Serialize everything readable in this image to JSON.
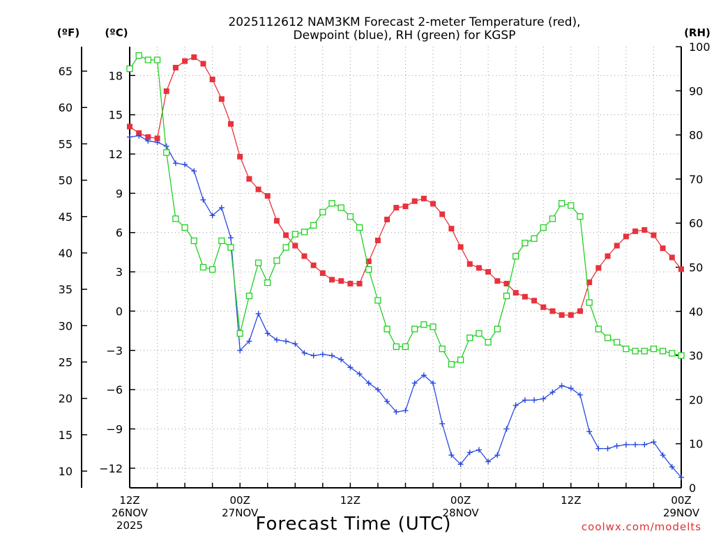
{
  "chart_data": {
    "type": "line",
    "title_line1": "2025112612 NAM3KM Forecast 2-meter Temperature (red),",
    "title_line2": "Dewpoint (blue), RH (green) for KGSP",
    "xlabel": "Forecast Time (UTC)",
    "credit": "coolwx.com/modelts",
    "units": {
      "f": "(ºF)",
      "c": "(ºC)",
      "rh": "(RH)"
    },
    "x_range_hours": [
      0,
      60
    ],
    "x_ticks": [
      {
        "hour": 0,
        "lines": [
          "12Z",
          "26NOV",
          "2025"
        ]
      },
      {
        "hour": 12,
        "lines": [
          "00Z",
          "27NOV"
        ]
      },
      {
        "hour": 24,
        "lines": [
          "12Z"
        ]
      },
      {
        "hour": 36,
        "lines": [
          "00Z",
          "28NOV"
        ]
      },
      {
        "hour": 48,
        "lines": [
          "12Z"
        ]
      },
      {
        "hour": 60,
        "lines": [
          "00Z",
          "29NOV"
        ]
      }
    ],
    "temp_c_range": [
      -13.5,
      20.2
    ],
    "celsius_ticks": [
      18,
      15,
      12,
      9,
      6,
      3,
      0,
      -3,
      -6,
      -9,
      -12
    ],
    "celsius_tick_labels": [
      "18",
      "15",
      "12",
      "9",
      "6",
      "3",
      "0",
      "−3",
      "−6",
      "−9",
      "−12"
    ],
    "fahrenheit_ticks": [
      "65",
      "60",
      "55",
      "50",
      "45",
      "40",
      "35",
      "30",
      "25",
      "20",
      "15",
      "10"
    ],
    "rh_range": [
      0,
      100
    ],
    "rh_ticks": [
      "100",
      "90",
      "80",
      "70",
      "60",
      "50",
      "40",
      "30",
      "20",
      "10",
      "0"
    ],
    "series": [
      {
        "name": "2-meter Temperature",
        "axis": "celsius",
        "color": "#e8323c",
        "marker": "filled-square",
        "x": [
          0,
          1,
          2,
          3,
          4,
          5,
          6,
          7,
          8,
          9,
          10,
          11,
          12,
          13,
          14,
          15,
          16,
          17,
          18,
          19,
          20,
          21,
          22,
          23,
          24,
          25,
          26,
          27,
          28,
          29,
          30,
          31,
          32,
          33,
          34,
          35,
          36,
          37,
          38,
          39,
          40,
          41,
          42,
          43,
          44,
          45,
          46,
          47,
          48,
          49,
          50,
          51,
          52,
          53,
          54,
          55,
          56,
          57,
          58,
          59,
          60
        ],
        "values": [
          14.1,
          13.6,
          13.3,
          13.2,
          16.8,
          18.6,
          19.1,
          19.4,
          18.9,
          17.7,
          16.2,
          14.3,
          11.8,
          10.1,
          9.3,
          8.8,
          6.9,
          5.8,
          5.0,
          4.2,
          3.5,
          2.9,
          2.4,
          2.3,
          2.1,
          2.1,
          3.8,
          5.4,
          7.0,
          7.9,
          8.0,
          8.4,
          8.6,
          8.2,
          7.4,
          6.3,
          4.9,
          3.6,
          3.3,
          3.0,
          2.3,
          2.1,
          1.4,
          1.1,
          0.8,
          0.3,
          0.0,
          -0.3,
          -0.3,
          0.0,
          2.2,
          3.3,
          4.2,
          5.0,
          5.7,
          6.1,
          6.2,
          5.8,
          4.8,
          4.1,
          3.2
        ]
      },
      {
        "name": "Dewpoint",
        "axis": "celsius",
        "color": "#2848e0",
        "marker": "plus",
        "x": [
          0,
          1,
          2,
          3,
          4,
          5,
          6,
          7,
          8,
          9,
          10,
          11,
          12,
          13,
          14,
          15,
          16,
          17,
          18,
          19,
          20,
          21,
          22,
          23,
          24,
          25,
          26,
          27,
          28,
          29,
          30,
          31,
          32,
          33,
          34,
          35,
          36,
          37,
          38,
          39,
          40,
          41,
          42,
          43,
          44,
          45,
          46,
          47,
          48,
          49,
          50,
          51,
          52,
          53,
          54,
          55,
          56,
          57,
          58,
          59,
          60
        ],
        "values": [
          13.3,
          13.4,
          13.0,
          12.9,
          12.6,
          11.3,
          11.2,
          10.7,
          8.5,
          7.3,
          7.9,
          5.6,
          -3.0,
          -2.3,
          -0.2,
          -1.7,
          -2.2,
          -2.3,
          -2.5,
          -3.2,
          -3.4,
          -3.3,
          -3.4,
          -3.7,
          -4.3,
          -4.8,
          -5.5,
          -6.0,
          -6.9,
          -7.7,
          -7.6,
          -5.5,
          -4.9,
          -5.5,
          -8.6,
          -11.0,
          -11.7,
          -10.8,
          -10.6,
          -11.5,
          -11.0,
          -9.0,
          -7.2,
          -6.8,
          -6.8,
          -6.7,
          -6.2,
          -5.7,
          -5.9,
          -6.4,
          -9.2,
          -10.5,
          -10.5,
          -10.3,
          -10.2,
          -10.2,
          -10.2,
          -10.0,
          -11.0,
          -11.9,
          -12.7
        ]
      },
      {
        "name": "RH",
        "axis": "rh",
        "color": "#20d020",
        "marker": "open-square",
        "x": [
          0,
          1,
          2,
          3,
          4,
          5,
          6,
          7,
          8,
          9,
          10,
          11,
          12,
          13,
          14,
          15,
          16,
          17,
          18,
          19,
          20,
          21,
          22,
          23,
          24,
          25,
          26,
          27,
          28,
          29,
          30,
          31,
          32,
          33,
          34,
          35,
          36,
          37,
          38,
          39,
          40,
          41,
          42,
          43,
          44,
          45,
          46,
          47,
          48,
          49,
          50,
          51,
          52,
          53,
          54,
          55,
          56,
          57,
          58,
          59,
          60
        ],
        "values": [
          95,
          98,
          97,
          97,
          76,
          61,
          59,
          56,
          50,
          49.5,
          56,
          54.5,
          35,
          43.5,
          51,
          46.5,
          51.5,
          54.5,
          57.5,
          58,
          59.5,
          62.5,
          64.5,
          63.5,
          61.5,
          59,
          49.5,
          42.5,
          36,
          32,
          32,
          36,
          37,
          36.5,
          31.5,
          28,
          29,
          34,
          35,
          33,
          36,
          43.5,
          52.5,
          55.5,
          56.5,
          59,
          61,
          64.5,
          64,
          61.5,
          42,
          36,
          34,
          33,
          31.5,
          31,
          31,
          31.5,
          31,
          30.5,
          30
        ]
      }
    ]
  }
}
